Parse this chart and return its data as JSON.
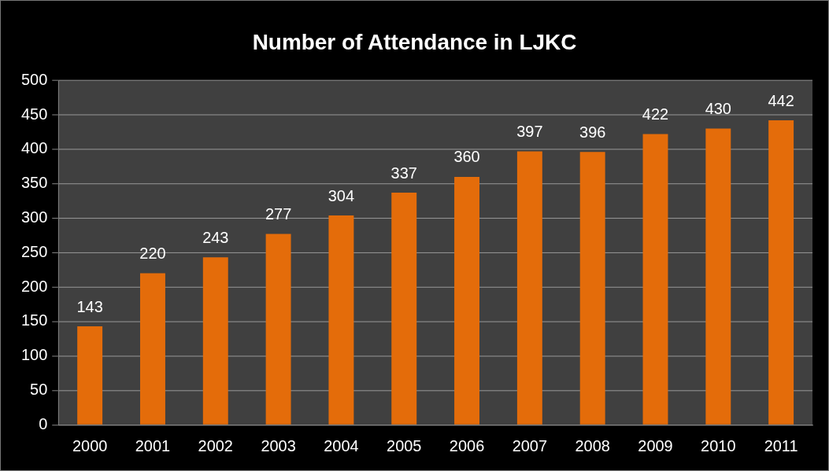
{
  "chart_data": {
    "type": "bar",
    "title": "Number of Attendance in LJKC",
    "categories": [
      "2000",
      "2001",
      "2002",
      "2003",
      "2004",
      "2005",
      "2006",
      "2007",
      "2008",
      "2009",
      "2010",
      "2011"
    ],
    "values": [
      143,
      220,
      243,
      277,
      304,
      337,
      360,
      397,
      396,
      422,
      430,
      442
    ],
    "color": "#e46c0a",
    "ylim": [
      0,
      500
    ],
    "yticks": [
      0,
      50,
      100,
      150,
      200,
      250,
      300,
      350,
      400,
      450,
      500
    ],
    "grid": "y",
    "legend": false,
    "data_labels": true
  }
}
